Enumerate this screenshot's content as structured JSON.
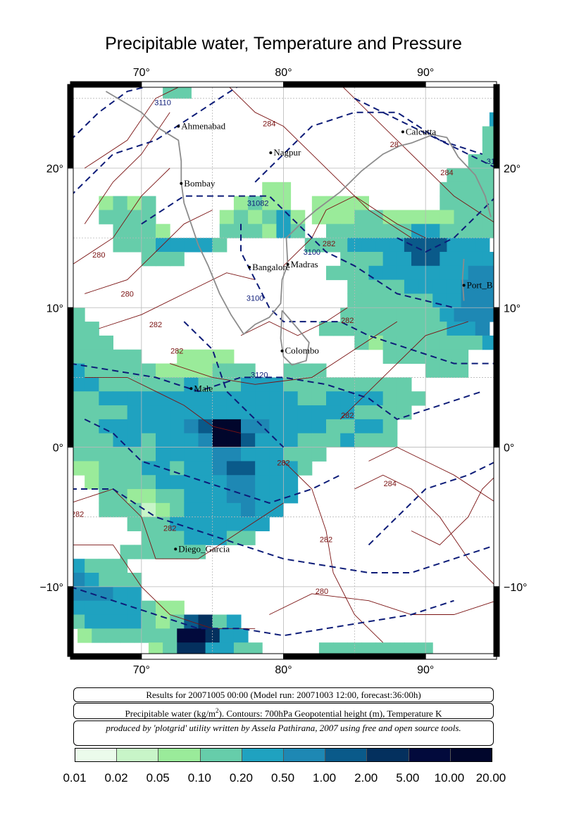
{
  "title": "Precipitable water, Temperature and Pressure",
  "map": {
    "lon_range": [
      65,
      95
    ],
    "lat_range": [
      -15,
      26
    ],
    "lon_ticks": [
      "70°",
      "80°",
      "90°"
    ],
    "lat_ticks_left": [
      "20°",
      "10°",
      "0°",
      "−10°"
    ],
    "lat_ticks_right": [
      "20°",
      "10°",
      "0°",
      "−10°"
    ],
    "cities": [
      {
        "name": "Ahmenabad",
        "lon": 72.6,
        "lat": 23.0
      },
      {
        "name": "Nagpur",
        "lon": 79.1,
        "lat": 21.1
      },
      {
        "name": "Calcutta",
        "lon": 88.4,
        "lat": 22.6
      },
      {
        "name": "Bombay",
        "lon": 72.8,
        "lat": 18.9
      },
      {
        "name": "Bangalore",
        "lon": 77.6,
        "lat": 12.9
      },
      {
        "name": "Madras",
        "lon": 80.3,
        "lat": 13.1
      },
      {
        "name": "Port_B",
        "lon": 92.7,
        "lat": 11.6
      },
      {
        "name": "Colombo",
        "lon": 79.9,
        "lat": 6.9
      },
      {
        "name": "Male",
        "lon": 73.5,
        "lat": 4.2
      },
      {
        "name": "Diego_Garcia",
        "lon": 72.4,
        "lat": -7.3
      }
    ],
    "contour_labels": [
      {
        "text": "3110",
        "lon": 71.5,
        "lat": 24.5
      },
      {
        "text": "284",
        "lon": 79.0,
        "lat": 23.0
      },
      {
        "text": "28",
        "lon": 87.8,
        "lat": 21.5
      },
      {
        "text": "284",
        "lon": 91.5,
        "lat": 19.5
      },
      {
        "text": "31",
        "lon": 94.6,
        "lat": 20.3
      },
      {
        "text": "31082",
        "lon": 78.2,
        "lat": 17.3
      },
      {
        "text": "282",
        "lon": 83.2,
        "lat": 14.4
      },
      {
        "text": "3100",
        "lon": 82.0,
        "lat": 13.8
      },
      {
        "text": "280",
        "lon": 67.0,
        "lat": 13.6
      },
      {
        "text": "280",
        "lon": 69.0,
        "lat": 10.8
      },
      {
        "text": "3100",
        "lon": 78.0,
        "lat": 10.5
      },
      {
        "text": "282",
        "lon": 71.0,
        "lat": 8.6
      },
      {
        "text": "282",
        "lon": 84.5,
        "lat": 8.9
      },
      {
        "text": "282",
        "lon": 72.5,
        "lat": 6.7
      },
      {
        "text": "3120",
        "lon": 78.3,
        "lat": 5.0
      },
      {
        "text": "282",
        "lon": 84.5,
        "lat": 2.1
      },
      {
        "text": "282",
        "lon": 80.0,
        "lat": -1.3
      },
      {
        "text": "284",
        "lon": 87.5,
        "lat": -2.8
      },
      {
        "text": "282",
        "lon": 65.5,
        "lat": -5.0
      },
      {
        "text": "282",
        "lon": 72.0,
        "lat": -6.0
      },
      {
        "text": "282",
        "lon": 83.0,
        "lat": -6.8
      },
      {
        "text": "280",
        "lon": 82.7,
        "lat": -10.5
      }
    ]
  },
  "legend": {
    "line1": "Results for 20071005 00:00 (Model run: 20071003 12:00, forecast:36:00h)",
    "line2_pre": "Precipitable water (kg/m",
    "line2_sup": "2",
    "line2_post": ").  Contours: 700hPa Geopotential height (m), Temperature K",
    "line3": "produced by 'plotgrid' utility written by Assela Pathirana, 2007 using free and open source tools."
  },
  "colorbar": {
    "labels": [
      "0.01",
      "0.02",
      "0.05",
      "0.10",
      "0.20",
      "0.50",
      "1.00",
      "2.00",
      "5.00",
      "10.00",
      "20.00"
    ],
    "colors": [
      "#ebfbeb",
      "#c8f5c8",
      "#9aeb9a",
      "#66cdaa",
      "#1fa2c0",
      "#1e88b4",
      "#0a5a8a",
      "#04305e",
      "#020a3c",
      "#01062c",
      "#00041c"
    ]
  }
}
